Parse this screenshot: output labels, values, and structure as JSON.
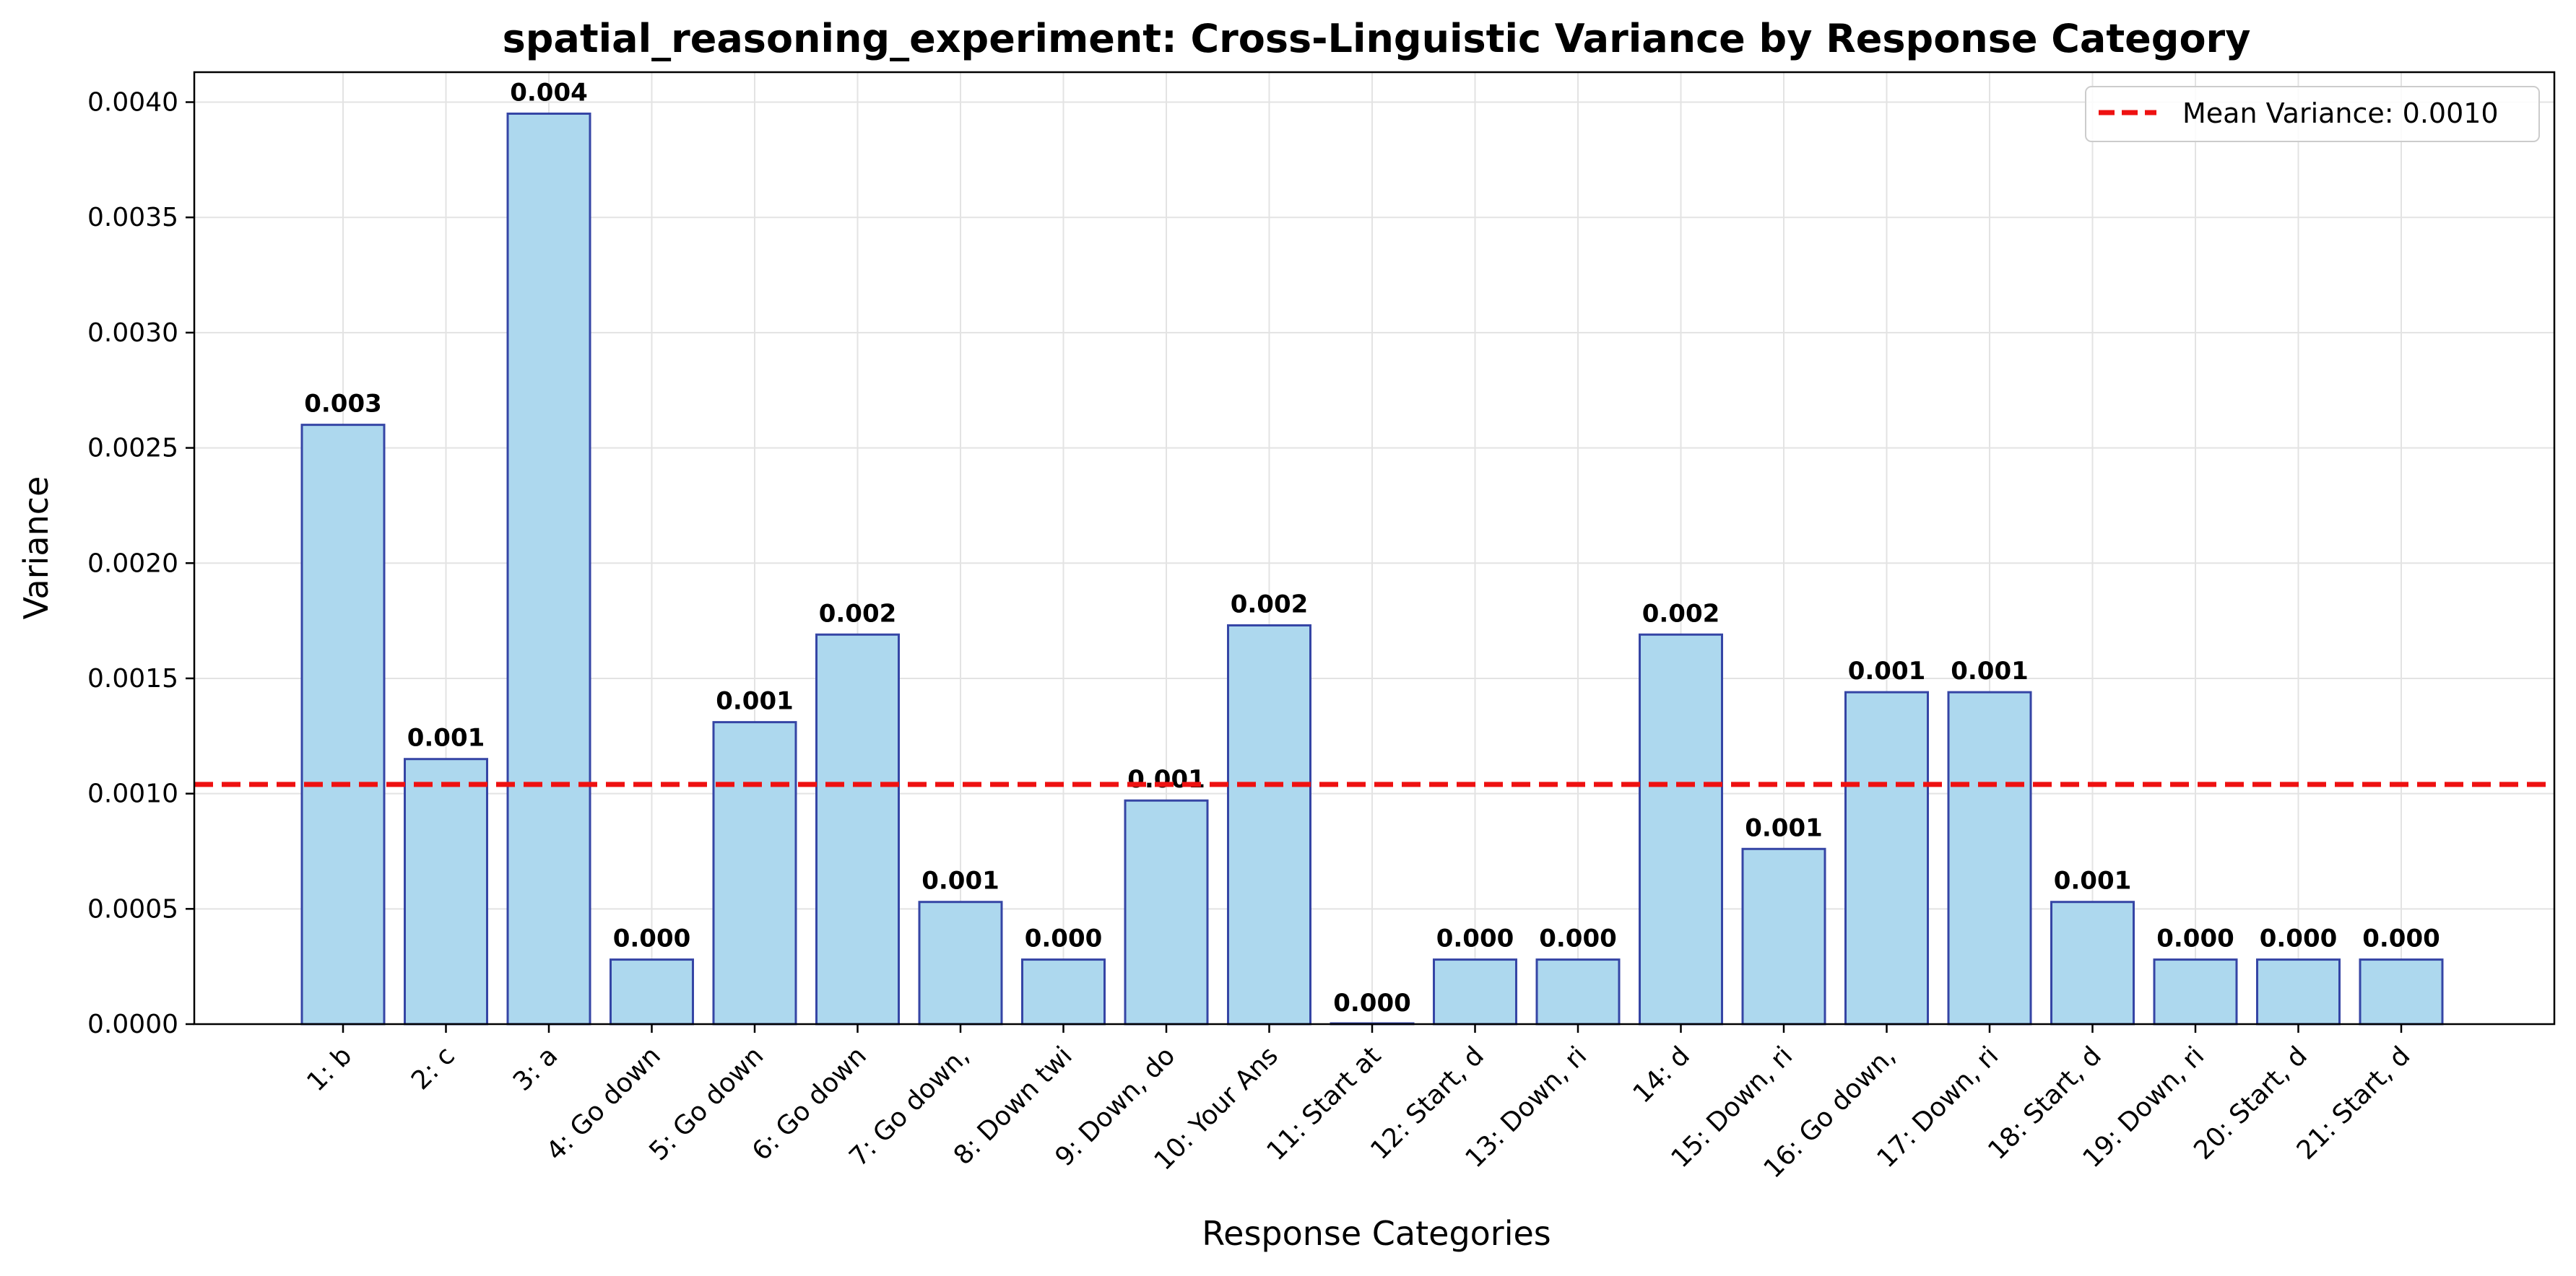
{
  "chart_data": {
    "type": "bar",
    "title": "spatial_reasoning_experiment: Cross-Linguistic Variance by Response Category",
    "xlabel": "Response Categories",
    "ylabel": "Variance",
    "categories": [
      "1: b",
      "2: c",
      "3: a",
      "4: Go down",
      "5: Go down",
      "6: Go down",
      "7: Go down,",
      "8: Down twi",
      "9: Down, do",
      "10: Your Ans",
      "11: Start at",
      "12: Start, d",
      "13: Down, ri",
      "14: d",
      "15: Down, ri",
      "16: Go down,",
      "17: Down, ri",
      "18: Start, d",
      "19: Down, ri",
      "20: Start, d",
      "21: Start, d"
    ],
    "values": [
      0.0026,
      0.00115,
      0.00395,
      0.00028,
      0.00131,
      0.00169,
      0.00053,
      0.00028,
      0.00097,
      0.00173,
      0.0,
      0.00028,
      0.00028,
      0.00169,
      0.00076,
      0.00144,
      0.00144,
      0.00053,
      0.00028,
      0.00028,
      0.00028
    ],
    "data_labels": [
      "0.003",
      "0.001",
      "0.004",
      "0.000",
      "0.001",
      "0.002",
      "0.001",
      "0.000",
      "0.001",
      "0.002",
      "0.000",
      "0.000",
      "0.000",
      "0.002",
      "0.001",
      "0.001",
      "0.001",
      "0.001",
      "0.000",
      "0.000",
      "0.000"
    ],
    "ylim": [
      0,
      0.00413
    ],
    "yticks": [
      "0.0000",
      "0.0005",
      "0.0010",
      "0.0015",
      "0.0020",
      "0.0025",
      "0.0030",
      "0.0035",
      "0.0040"
    ],
    "ytick_values": [
      0,
      0.0005,
      0.001,
      0.0015,
      0.002,
      0.0025,
      0.003,
      0.0035,
      0.004
    ],
    "mean_line": {
      "value": 0.00104,
      "label": "Mean Variance: 0.0010",
      "color": "#ee1111"
    },
    "legend_position": "top-right",
    "grid": true,
    "bar_fill": "#add8ee",
    "bar_edge": "#3545a5"
  }
}
